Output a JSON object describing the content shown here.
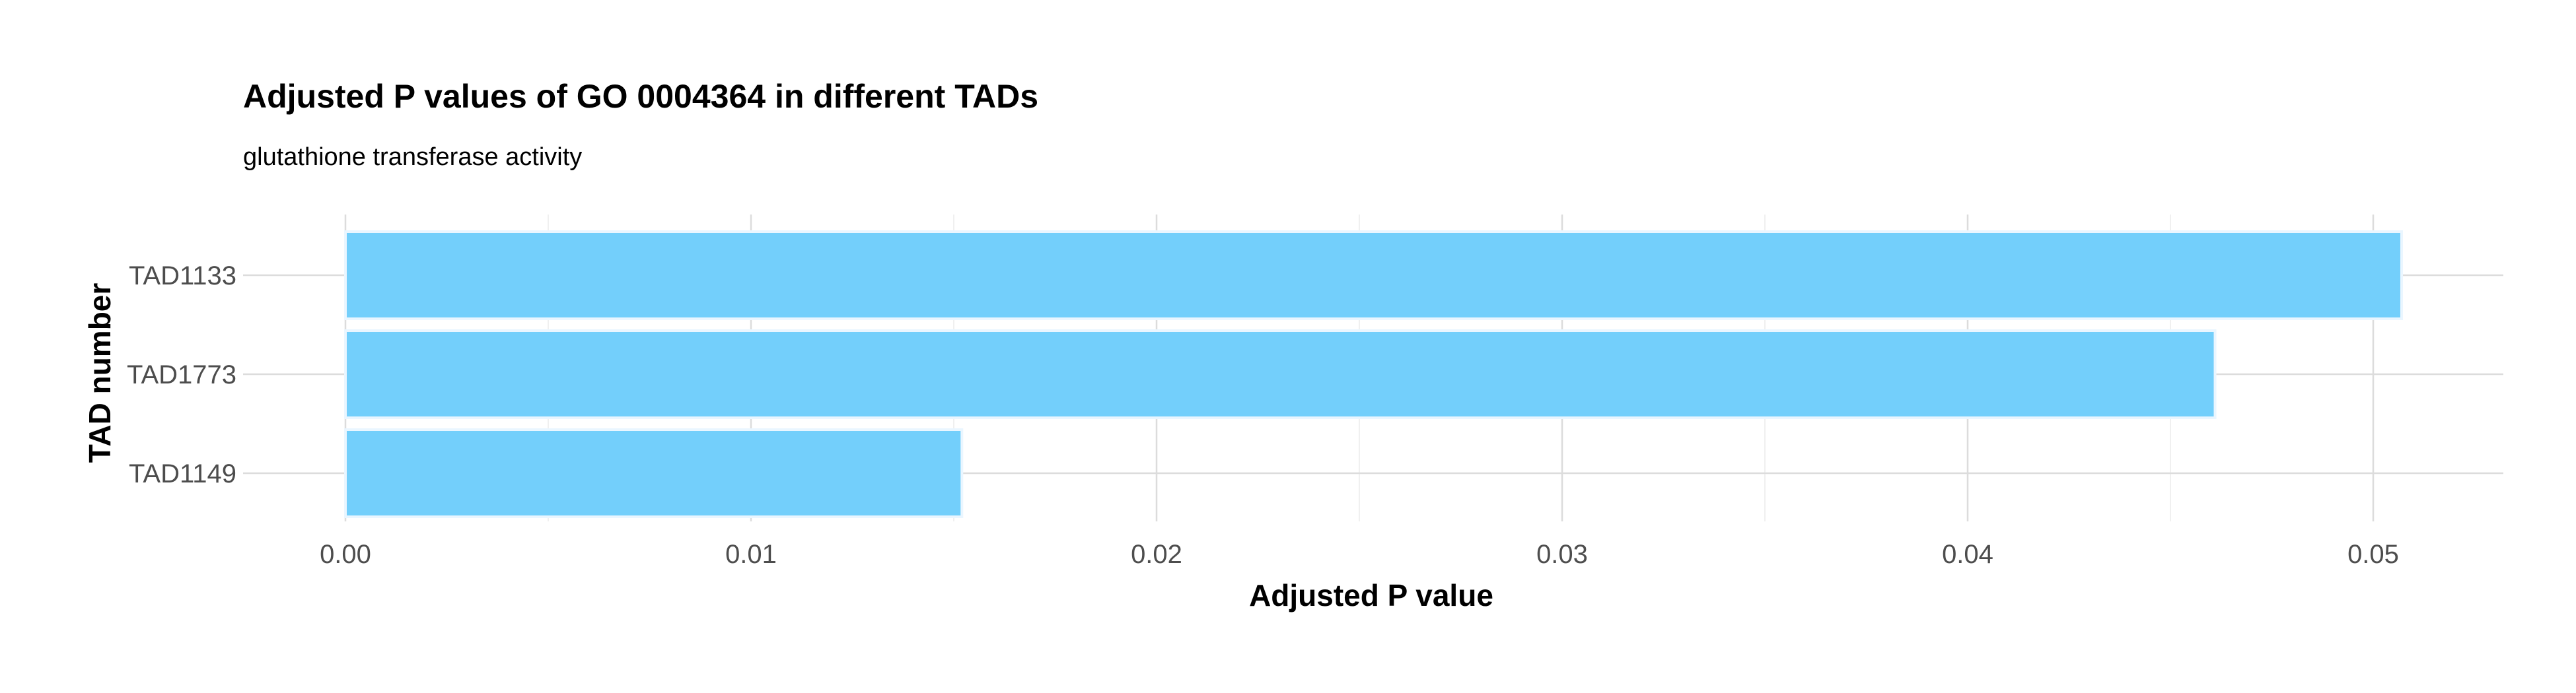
{
  "chart_data": {
    "type": "bar",
    "orientation": "horizontal",
    "title": "Adjusted P values of GO 0004364 in different TADs",
    "subtitle": "glutathione transferase activity",
    "xlabel": "Adjusted P value",
    "ylabel": "TAD number",
    "categories": [
      "TAD1133",
      "TAD1773",
      "TAD1149"
    ],
    "values": [
      0.0507,
      0.0461,
      0.0152
    ],
    "xlim": [
      0,
      0.0533
    ],
    "xticks": [
      0.0,
      0.01,
      0.02,
      0.03,
      0.04,
      0.05
    ],
    "xtick_labels": [
      "0.00",
      "0.01",
      "0.02",
      "0.03",
      "0.04",
      "0.05"
    ],
    "grid": true,
    "legend": "none",
    "bar_color": "#73CFFB"
  }
}
